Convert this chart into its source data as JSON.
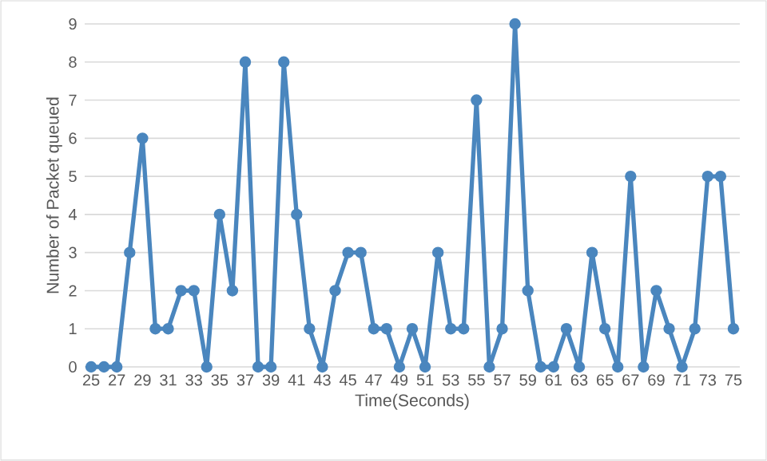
{
  "chart_data": {
    "type": "line",
    "xlabel": "Time(Seconds)",
    "ylabel": "Number of Packet queued",
    "x": [
      25,
      26,
      27,
      28,
      29,
      30,
      31,
      32,
      33,
      34,
      35,
      36,
      37,
      38,
      39,
      40,
      41,
      42,
      43,
      44,
      45,
      46,
      47,
      48,
      49,
      50,
      51,
      52,
      53,
      54,
      55,
      56,
      57,
      58,
      59,
      60,
      61,
      62,
      63,
      64,
      65,
      66,
      67,
      68,
      69,
      70,
      71,
      72,
      73,
      74,
      75
    ],
    "values": [
      0,
      0,
      0,
      3,
      6,
      1,
      1,
      2,
      2,
      0,
      4,
      2,
      8,
      0,
      0,
      8,
      4,
      1,
      0,
      2,
      3,
      3,
      1,
      1,
      0,
      1,
      0,
      3,
      1,
      1,
      7,
      0,
      1,
      9,
      2,
      0,
      0,
      1,
      0,
      3,
      1,
      0,
      5,
      0,
      2,
      1,
      0,
      1,
      5,
      5,
      1
    ],
    "color": "#4a86be",
    "xlim": [
      24.5,
      75.5
    ],
    "xticks": [
      25,
      27,
      29,
      31,
      33,
      35,
      37,
      39,
      41,
      43,
      45,
      47,
      49,
      51,
      53,
      55,
      57,
      59,
      61,
      63,
      65,
      67,
      69,
      71,
      73,
      75
    ],
    "ylim": [
      0,
      9
    ],
    "yticks": [
      0,
      1,
      2,
      3,
      4,
      5,
      6,
      7,
      8,
      9
    ],
    "grid": "y",
    "marker": "circle",
    "line_style": "solid"
  }
}
